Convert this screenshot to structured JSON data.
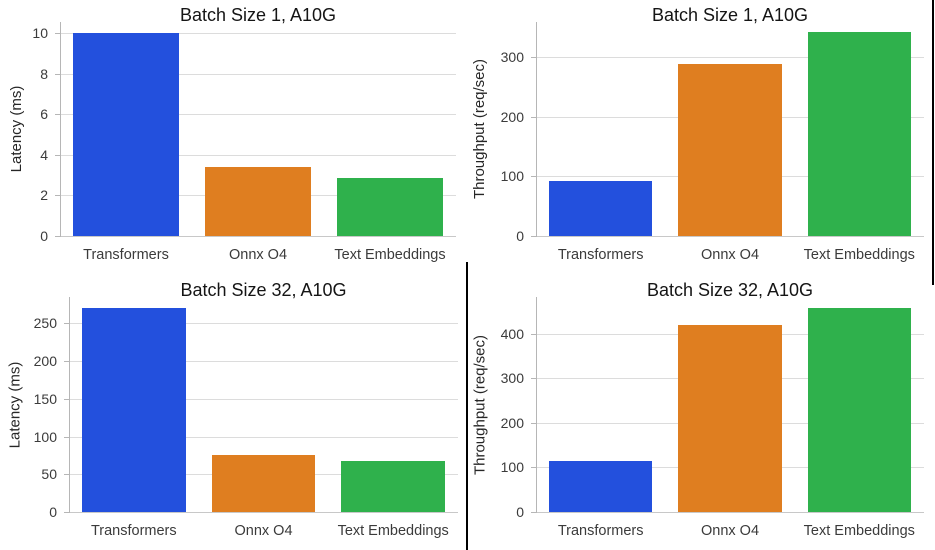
{
  "colors": {
    "bar_blue": "#2350dd",
    "bar_orange": "#df7e20",
    "bar_green": "#2fb14c",
    "gridline": "#dcdcdc",
    "baseline": "#c8c8c8",
    "spine": "#b6b6b6",
    "divider": "#000000"
  },
  "chart_data": [
    {
      "type": "bar",
      "title": "Batch Size 1, A10G",
      "ylabel": "Latency (ms)",
      "xlabel": "",
      "categories": [
        "Transformers",
        "Onnx O4",
        "Text Embeddings"
      ],
      "values": [
        10.0,
        3.4,
        2.85
      ],
      "yticks": [
        0,
        2,
        4,
        6,
        8,
        10
      ],
      "ylim": [
        0,
        10.55
      ],
      "bar_colors": [
        "#2350dd",
        "#df7e20",
        "#2fb14c"
      ],
      "grid": true,
      "legend": false
    },
    {
      "type": "bar",
      "title": "Batch Size 1, A10G",
      "ylabel": "Throughput (req/sec)",
      "xlabel": "",
      "categories": [
        "Transformers",
        "Onnx O4",
        "Text Embeddings"
      ],
      "values": [
        92,
        288,
        342
      ],
      "yticks": [
        0,
        100,
        200,
        300
      ],
      "ylim": [
        0,
        359
      ],
      "bar_colors": [
        "#2350dd",
        "#df7e20",
        "#2fb14c"
      ],
      "grid": true,
      "legend": false
    },
    {
      "type": "bar",
      "title": "Batch Size 32, A10G",
      "ylabel": "Latency (ms)",
      "xlabel": "",
      "categories": [
        "Transformers",
        "Onnx O4",
        "Text Embeddings"
      ],
      "values": [
        270,
        75,
        68
      ],
      "yticks": [
        0,
        50,
        100,
        150,
        200,
        250
      ],
      "ylim": [
        0,
        285
      ],
      "bar_colors": [
        "#2350dd",
        "#df7e20",
        "#2fb14c"
      ],
      "grid": true,
      "legend": false
    },
    {
      "type": "bar",
      "title": "Batch Size 32, A10G",
      "ylabel": "Throughput (req/sec)",
      "xlabel": "",
      "categories": [
        "Transformers",
        "Onnx O4",
        "Text Embeddings"
      ],
      "values": [
        115,
        421,
        459
      ],
      "yticks": [
        0,
        100,
        200,
        300,
        400
      ],
      "ylim": [
        0,
        483
      ],
      "bar_colors": [
        "#2350dd",
        "#df7e20",
        "#2fb14c"
      ],
      "grid": true,
      "legend": false
    }
  ]
}
